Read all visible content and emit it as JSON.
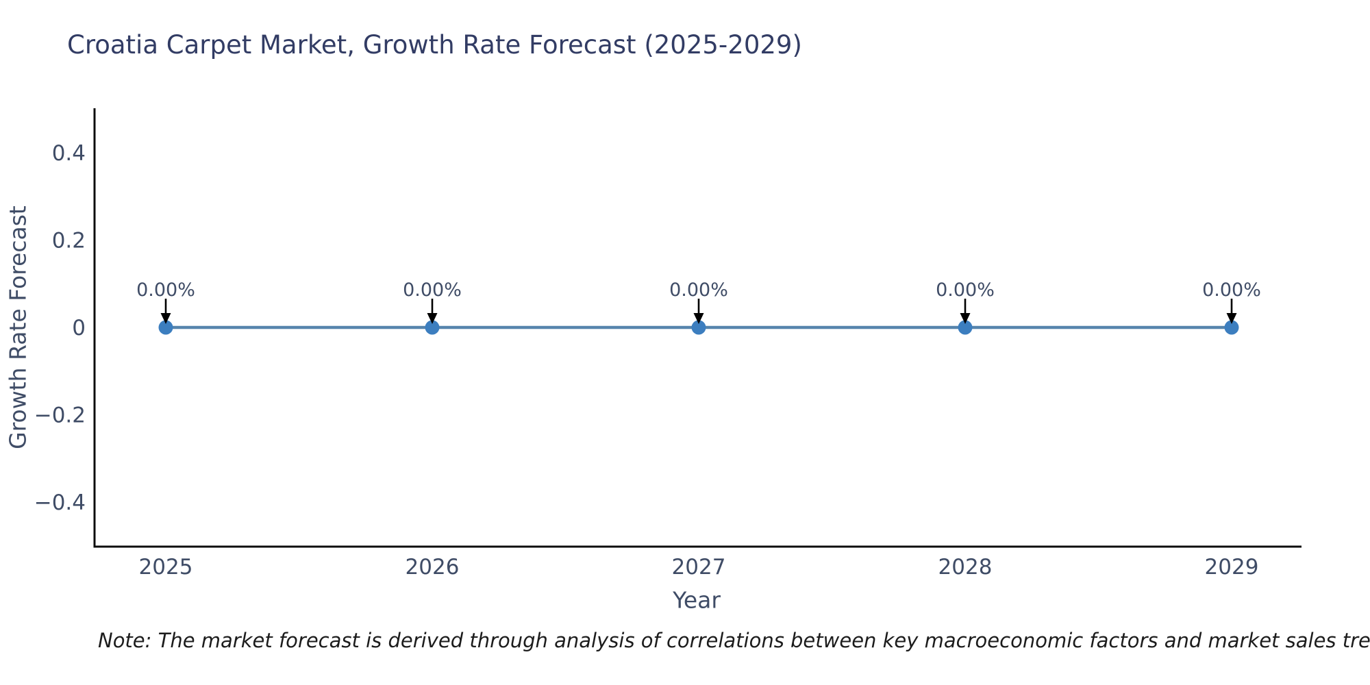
{
  "header": {
    "title": "Croatia Carpet Market, Growth Rate Forecast (2025-2029)"
  },
  "chart_data": {
    "type": "line",
    "title": "Croatia Carpet Market, Growth Rate Forecast (2025-2029)",
    "categories": [
      "2025",
      "2026",
      "2027",
      "2028",
      "2029"
    ],
    "series": [
      {
        "name": "Growth Rate Forecast",
        "values": [
          0,
          0,
          0,
          0,
          0
        ]
      }
    ],
    "point_labels": [
      "0.00%",
      "0.00%",
      "0.00%",
      "0.00%",
      "0.00%"
    ],
    "xlabel": "Year",
    "ylabel": "Growth Rate Forecast",
    "ylim": [
      -0.502,
      0.502
    ],
    "yticks": [
      0.4,
      0.2,
      0,
      -0.2,
      -0.4
    ],
    "ytick_labels": [
      "0.4",
      "0.2",
      "0",
      "−0.2",
      "−0.4"
    ],
    "grid": false,
    "legend": "none",
    "marker": "circle",
    "annotation_arrow": "down-arrow",
    "colors": {
      "line": "#5685ad",
      "marker": "#3c7ebf",
      "arrow": "#000000",
      "axis": "#0d0d0d",
      "title": "#323c64",
      "tick": "#3f4c66",
      "note": "#1c1c1c"
    }
  },
  "note": {
    "text": "Note: The market forecast is derived through analysis of correlations between key macroeconomic factors and market sales trends, followed by predictive modeling to project future sa"
  }
}
